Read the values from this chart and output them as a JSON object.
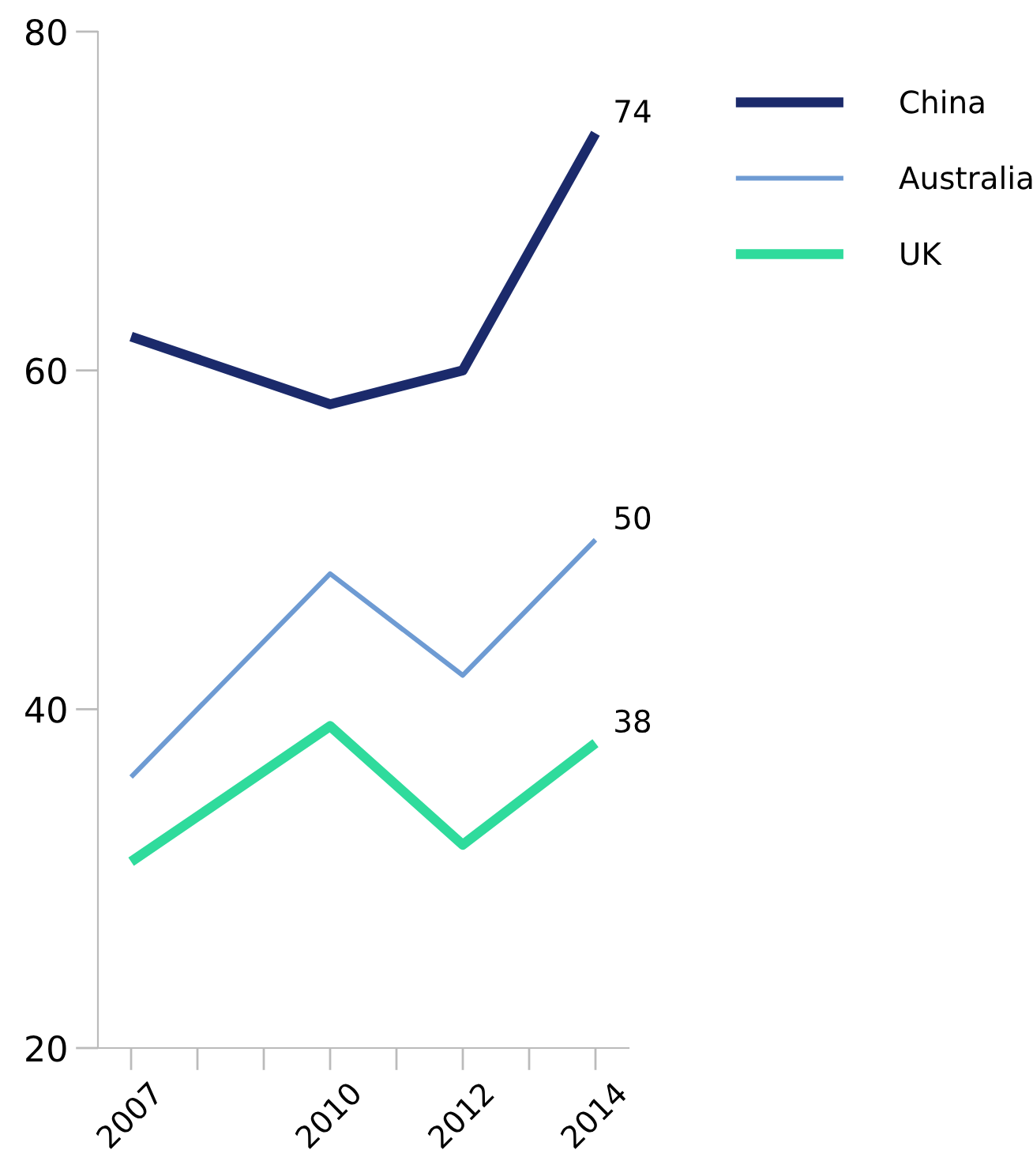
{
  "chart_data": {
    "type": "line",
    "x": [
      2007,
      2010,
      2012,
      2014
    ],
    "series": [
      {
        "name": "China",
        "color": "#1b2a6b",
        "values": [
          62,
          58,
          60,
          74
        ],
        "value_labels": [
          null,
          null,
          null,
          "74"
        ]
      },
      {
        "name": "Australia",
        "color": "#6e9bd3",
        "values": [
          36,
          48,
          42,
          50
        ],
        "value_labels": [
          null,
          null,
          null,
          "50"
        ]
      },
      {
        "name": "UK",
        "color": "#2fdb9c",
        "values": [
          31,
          39,
          32,
          38
        ],
        "value_labels": [
          null,
          null,
          null,
          "38"
        ]
      }
    ],
    "xlim": [
      2006.5,
      2014.5
    ],
    "xticks": [
      2007,
      {
        "value": 2008,
        "label": null
      },
      {
        "value": 2009,
        "label": null
      },
      2010,
      {
        "value": 2011,
        "label": null
      },
      2012,
      {
        "value": 2013,
        "label": null
      },
      2014
    ],
    "ylim": [
      20,
      80
    ],
    "yticks": [
      20,
      40,
      60,
      80
    ],
    "grid": false,
    "legend": "top right",
    "marker": "none",
    "line_style": "solid"
  }
}
